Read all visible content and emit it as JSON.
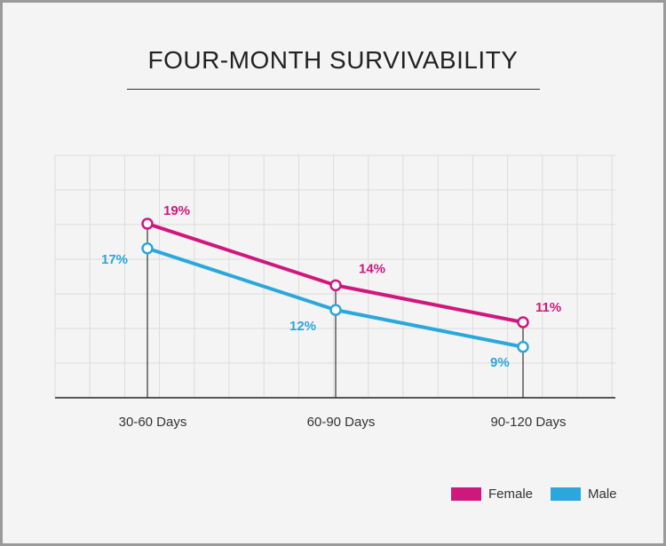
{
  "title": "FOUR-MONTH SURVIVABILITY",
  "chart_data": {
    "type": "line",
    "title": "FOUR-MONTH SURVIVABILITY",
    "categories": [
      "30-60 Days",
      "60-90 Days",
      "90-120 Days"
    ],
    "series": [
      {
        "name": "Female",
        "values": [
          19,
          14,
          11
        ],
        "labels": [
          "19%",
          "14%",
          "11%"
        ],
        "color": "#d0177e"
      },
      {
        "name": "Male",
        "values": [
          17,
          12,
          9
        ],
        "labels": [
          "17%",
          "12%",
          "9%"
        ],
        "color": "#2aa7dc"
      }
    ],
    "ylim": [
      0,
      24
    ],
    "grid": true,
    "legend": "bottom-right",
    "xlabel": "",
    "ylabel": ""
  }
}
